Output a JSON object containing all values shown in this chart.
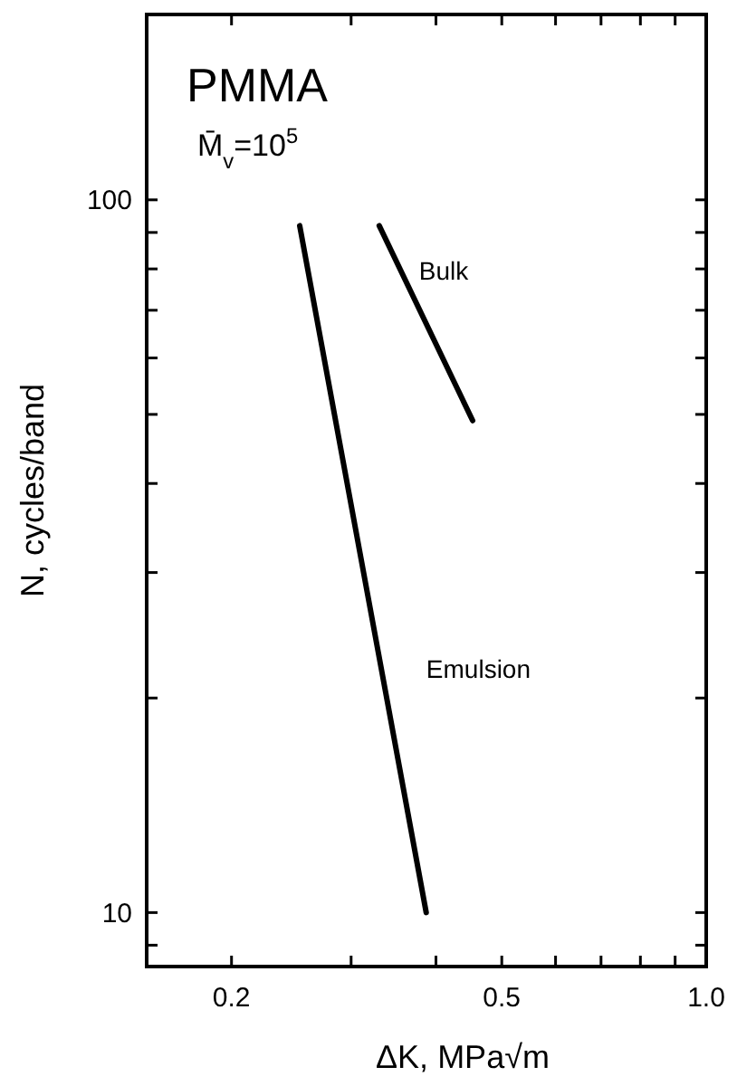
{
  "chart_data": {
    "type": "line",
    "title": "PMMA",
    "subtitle": "M̄$_{v}$=10$^{5}$",
    "xlabel": "ΔK, MPa√m",
    "ylabel": "N, cycles/band",
    "log": "xy",
    "grid": false,
    "marker": "none",
    "line_style": "solid",
    "xlim": [
      0.15,
      1.0
    ],
    "ylim": [
      8.4,
      182
    ],
    "xticks": [
      0.2,
      {
        "value": 0.3,
        "label": null
      },
      {
        "value": 0.4,
        "label": null
      },
      0.5,
      {
        "value": 0.6,
        "label": null
      },
      {
        "value": 0.7,
        "label": null
      },
      {
        "value": 0.8,
        "label": null
      },
      {
        "value": 0.9,
        "label": null
      },
      {
        "value": 1,
        "label": "1.0"
      }
    ],
    "yticks": [
      {
        "value": 9,
        "label": null
      },
      10,
      {
        "value": 20,
        "label": null
      },
      {
        "value": 30,
        "label": null
      },
      {
        "value": 40,
        "label": null
      },
      {
        "value": 50,
        "label": null
      },
      {
        "value": 60,
        "label": null
      },
      {
        "value": 70,
        "label": null
      },
      {
        "value": 80,
        "label": null
      },
      {
        "value": 90,
        "label": null
      },
      100
    ],
    "series": [
      {
        "name": "Emulsion",
        "color": "#000000",
        "x": [
          0.252,
          0.387
        ],
        "values": [
          92,
          10
        ]
      },
      {
        "name": "Bulk",
        "color": "#000000",
        "x": [
          0.33,
          0.453
        ],
        "values": [
          92,
          49
        ]
      }
    ]
  }
}
